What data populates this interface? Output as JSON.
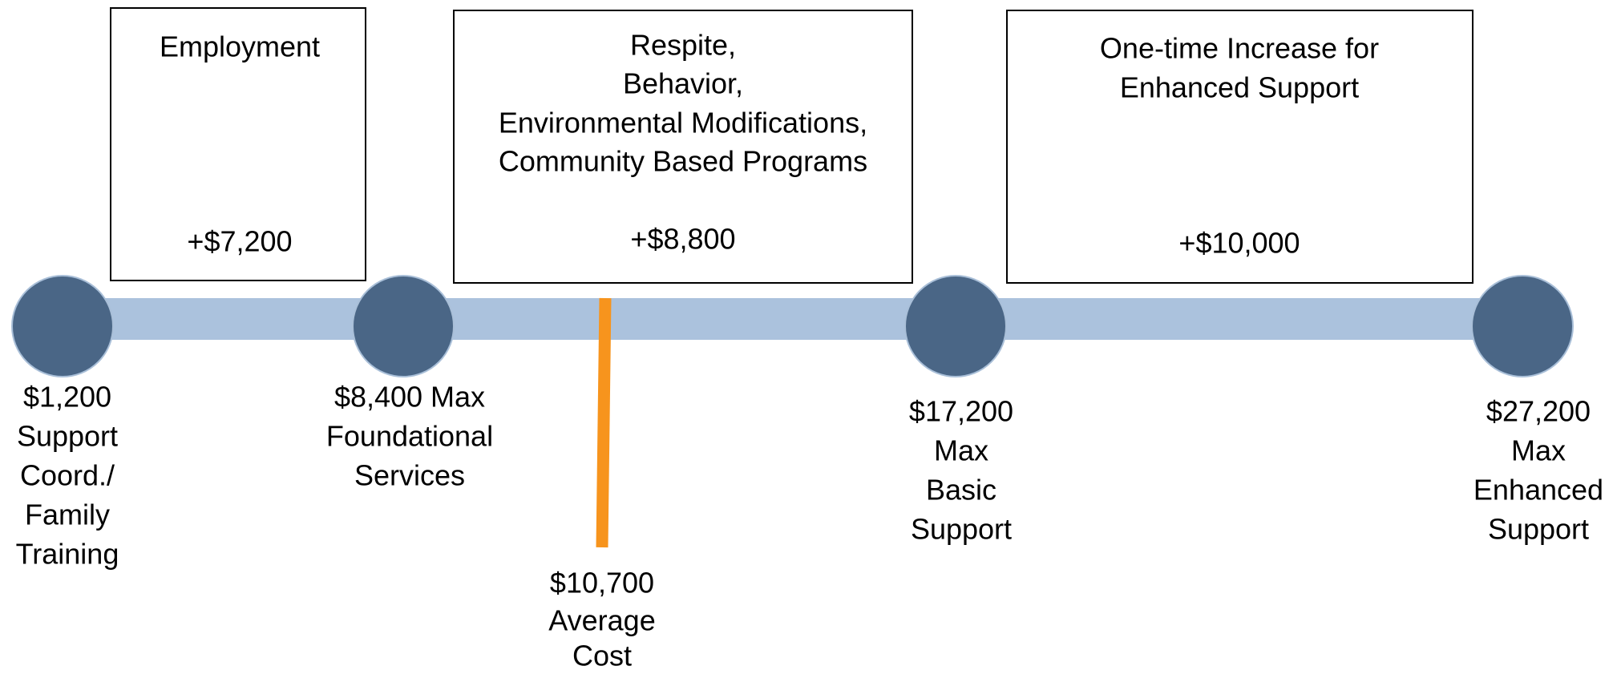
{
  "boxes": [
    {
      "lines": [
        "Employment"
      ],
      "amount": "+$7,200"
    },
    {
      "lines": [
        "Respite,",
        "Behavior,",
        "Environmental Modifications,",
        "Community Based Programs"
      ],
      "amount": "+$8,800"
    },
    {
      "lines": [
        "One-time Increase for",
        "Enhanced Support"
      ],
      "amount": "+$10,000"
    }
  ],
  "milestones": [
    {
      "lines": [
        "$1,200",
        "Support",
        "Coord./",
        "Family",
        "Training"
      ]
    },
    {
      "lines": [
        "$8,400 Max",
        "Foundational",
        "Services"
      ]
    },
    {
      "lines": [
        "$17,200",
        "Max",
        "Basic",
        "Support"
      ]
    },
    {
      "lines": [
        "$27,200",
        "Max",
        "Enhanced",
        "Support"
      ]
    }
  ],
  "average": {
    "lines": [
      "$10,700",
      "Average",
      "Cost"
    ]
  }
}
